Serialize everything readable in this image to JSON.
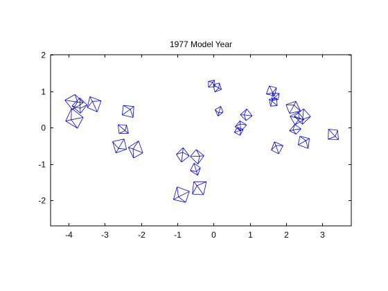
{
  "chart_data": {
    "type": "scatter",
    "marker": "3d-glyph",
    "title": "1977 Model Year",
    "xlabel": "",
    "ylabel": "",
    "xlim": [
      -4.5,
      3.8
    ],
    "ylim": [
      -2.7,
      2.0
    ],
    "xticks": [
      -4,
      -3,
      -2,
      -1,
      0,
      1,
      2,
      3
    ],
    "yticks": [
      -2,
      -1,
      0,
      1,
      2
    ],
    "grid": false,
    "legend": "none",
    "color": "#0000cc",
    "points": [
      {
        "x": -3.85,
        "y": 0.7,
        "size": 1.1
      },
      {
        "x": -3.7,
        "y": 0.6,
        "size": 0.9
      },
      {
        "x": -3.85,
        "y": 0.25,
        "size": 1.05
      },
      {
        "x": -3.3,
        "y": 0.65,
        "size": 1.0
      },
      {
        "x": -2.35,
        "y": 0.45,
        "size": 0.85
      },
      {
        "x": -2.5,
        "y": -0.05,
        "size": 0.8
      },
      {
        "x": -2.6,
        "y": -0.5,
        "size": 0.95
      },
      {
        "x": -2.15,
        "y": -0.6,
        "size": 0.9
      },
      {
        "x": -0.85,
        "y": -0.75,
        "size": 0.85
      },
      {
        "x": -0.45,
        "y": -0.8,
        "size": 0.8
      },
      {
        "x": -0.5,
        "y": -1.15,
        "size": 0.75
      },
      {
        "x": -0.9,
        "y": -1.85,
        "size": 1.05
      },
      {
        "x": -0.4,
        "y": -1.65,
        "size": 0.95
      },
      {
        "x": -0.05,
        "y": 1.2,
        "size": 0.55
      },
      {
        "x": 0.1,
        "y": 1.1,
        "size": 0.55
      },
      {
        "x": 0.15,
        "y": 0.45,
        "size": 0.6
      },
      {
        "x": 0.9,
        "y": 0.35,
        "size": 0.7
      },
      {
        "x": 0.75,
        "y": 0.05,
        "size": 0.6
      },
      {
        "x": 0.7,
        "y": -0.1,
        "size": 0.55
      },
      {
        "x": 1.6,
        "y": 1.0,
        "size": 0.65
      },
      {
        "x": 1.7,
        "y": 0.85,
        "size": 0.6
      },
      {
        "x": 1.65,
        "y": 0.7,
        "size": 0.6
      },
      {
        "x": 2.2,
        "y": 0.55,
        "size": 0.8
      },
      {
        "x": 2.3,
        "y": 0.25,
        "size": 0.85
      },
      {
        "x": 2.45,
        "y": 0.3,
        "size": 0.9
      },
      {
        "x": 2.25,
        "y": -0.05,
        "size": 0.7
      },
      {
        "x": 1.75,
        "y": -0.55,
        "size": 0.75
      },
      {
        "x": 2.5,
        "y": -0.4,
        "size": 0.75
      },
      {
        "x": 3.3,
        "y": -0.2,
        "size": 0.85
      }
    ]
  }
}
